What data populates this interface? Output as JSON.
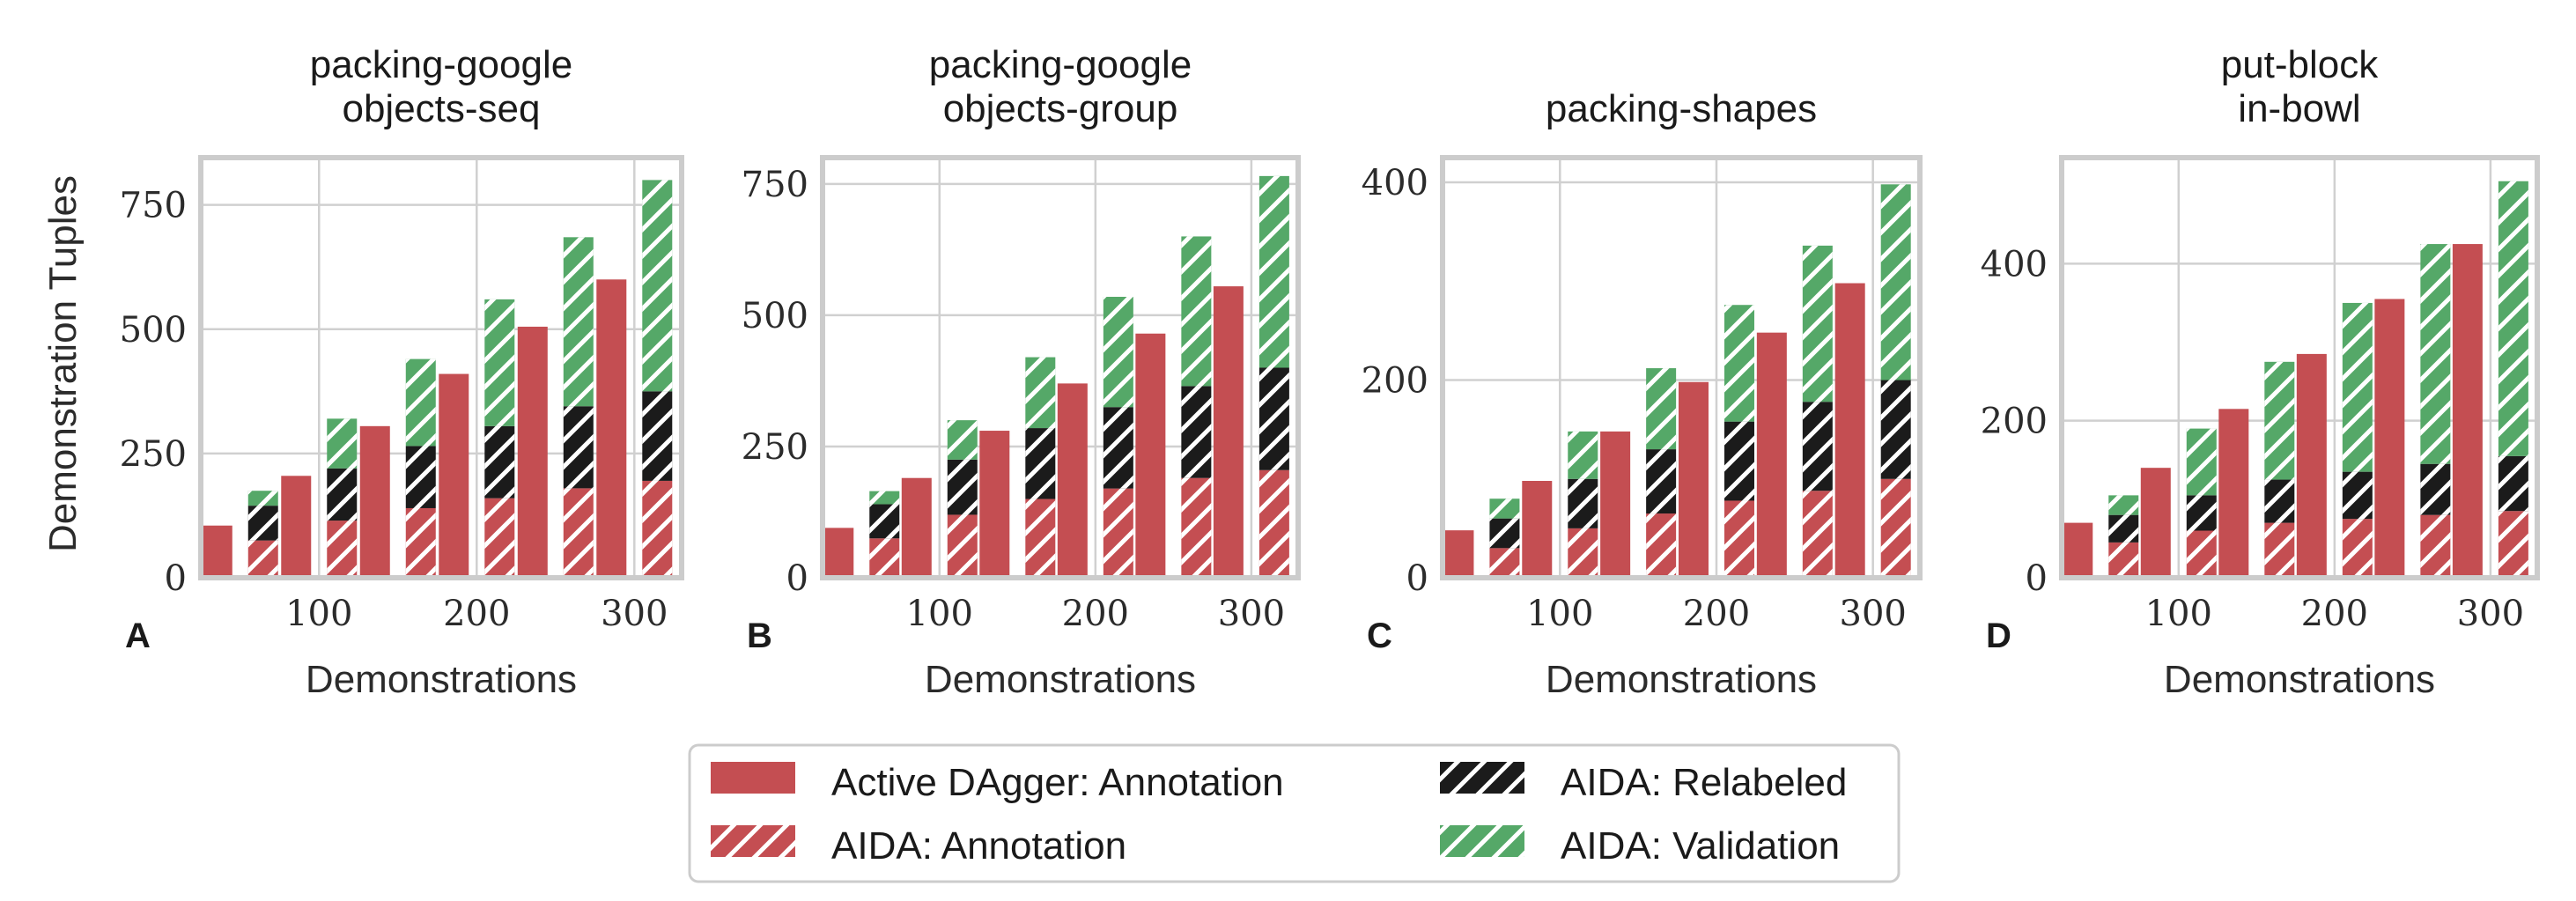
{
  "chart_data": {
    "type": "bar",
    "y_axis_label": "Demonstration Tuples",
    "x_axis_label": "Demonstrations",
    "colors": {
      "annotation": "#c44e52",
      "relabeled": "#1b1b1b",
      "validation": "#55a868",
      "frame": "#cccccc",
      "grid": "#d0d0d0"
    },
    "legend": {
      "placement": "bottom-center",
      "entries": [
        {
          "key": "active",
          "label": "Active DAgger: Annotation",
          "color": "#c44e52",
          "hatch": false
        },
        {
          "key": "annotation",
          "label": "AIDA: Annotation",
          "color": "#c44e52",
          "hatch": true
        },
        {
          "key": "relabeled",
          "label": "AIDA: Relabeled",
          "color": "#1b1b1b",
          "hatch": true
        },
        {
          "key": "validation",
          "label": "AIDA: Validation",
          "color": "#55a868",
          "hatch": true
        }
      ]
    },
    "panels": [
      {
        "letter": "A",
        "title": [
          "packing-google",
          "objects-seq"
        ],
        "xlim": [
          25,
          330
        ],
        "ylim": [
          0,
          845
        ],
        "xticks": [
          100,
          200,
          300
        ],
        "yticks": [
          0,
          250,
          500,
          750
        ],
        "demonstrations": [
          50,
          100,
          150,
          200,
          250,
          300
        ],
        "active_dagger": [
          105,
          205,
          305,
          410,
          505,
          600
        ],
        "aida_annotation": [
          75,
          115,
          140,
          160,
          180,
          195
        ],
        "aida_relabeled": [
          70,
          105,
          125,
          145,
          165,
          180
        ],
        "aida_validation": [
          30,
          100,
          175,
          255,
          340,
          425
        ]
      },
      {
        "letter": "B",
        "title": [
          "packing-google",
          "objects-group"
        ],
        "xlim": [
          25,
          330
        ],
        "ylim": [
          0,
          800
        ],
        "xticks": [
          100,
          200,
          300
        ],
        "yticks": [
          0,
          250,
          500,
          750
        ],
        "demonstrations": [
          50,
          100,
          150,
          200,
          250,
          300
        ],
        "active_dagger": [
          95,
          190,
          280,
          370,
          465,
          555
        ],
        "aida_annotation": [
          75,
          120,
          150,
          170,
          190,
          205
        ],
        "aida_relabeled": [
          65,
          105,
          135,
          155,
          175,
          195
        ],
        "aida_validation": [
          25,
          75,
          135,
          210,
          285,
          365
        ]
      },
      {
        "letter": "C",
        "title": [
          "packing-shapes"
        ],
        "xlim": [
          25,
          330
        ],
        "ylim": [
          0,
          425
        ],
        "xticks": [
          100,
          200,
          300
        ],
        "yticks": [
          0,
          200,
          400
        ],
        "demonstrations": [
          50,
          100,
          150,
          200,
          250,
          300
        ],
        "active_dagger": [
          48,
          98,
          148,
          198,
          248,
          298
        ],
        "aida_annotation": [
          30,
          50,
          65,
          78,
          88,
          100
        ],
        "aida_relabeled": [
          30,
          50,
          65,
          80,
          90,
          100
        ],
        "aida_validation": [
          20,
          48,
          82,
          118,
          158,
          198
        ]
      },
      {
        "letter": "D",
        "title": [
          "put-block",
          "in-bowl"
        ],
        "xlim": [
          25,
          330
        ],
        "ylim": [
          0,
          535
        ],
        "xticks": [
          100,
          200,
          300
        ],
        "yticks": [
          0,
          200,
          400
        ],
        "demonstrations": [
          50,
          100,
          150,
          200,
          250,
          300
        ],
        "active_dagger": [
          70,
          140,
          215,
          285,
          355,
          425
        ],
        "aida_annotation": [
          45,
          60,
          70,
          75,
          80,
          85
        ],
        "aida_relabeled": [
          35,
          45,
          55,
          60,
          65,
          70
        ],
        "aida_validation": [
          25,
          85,
          150,
          215,
          280,
          350
        ]
      }
    ]
  }
}
